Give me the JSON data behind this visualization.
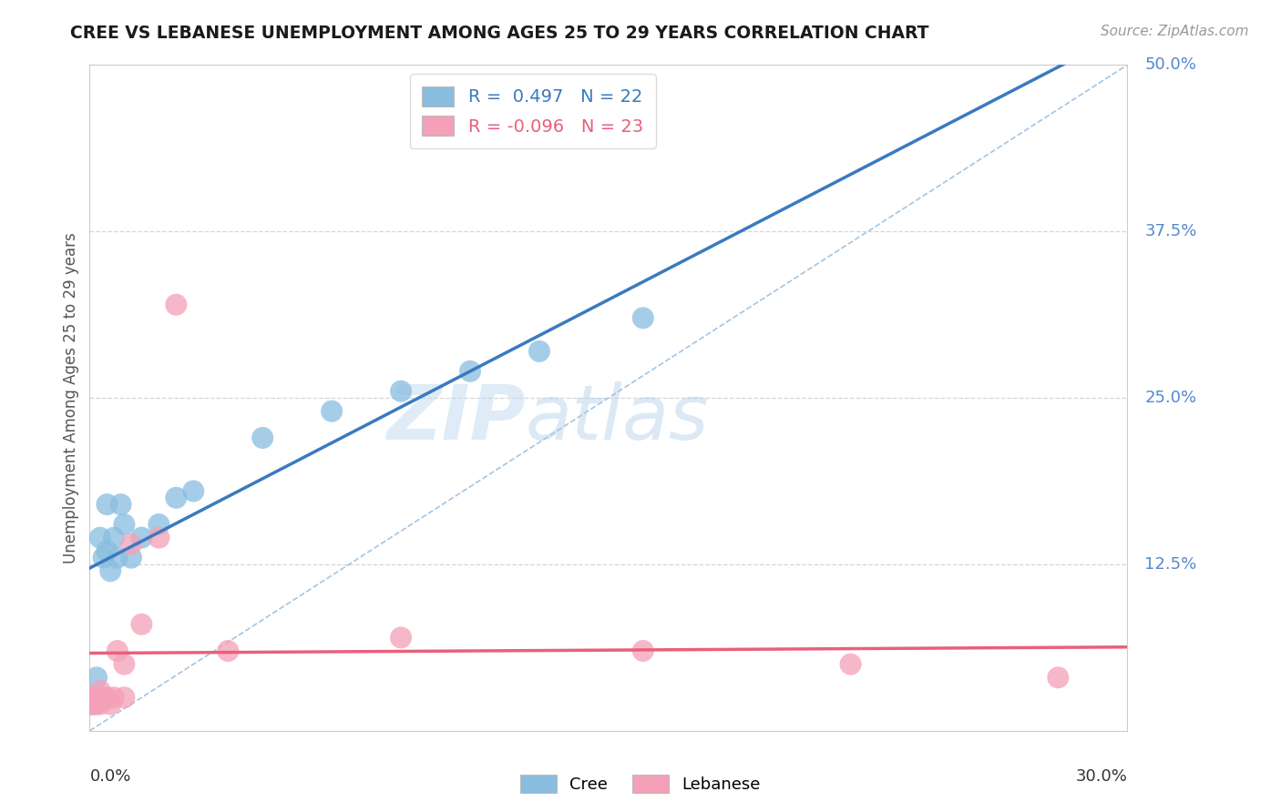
{
  "title": "CREE VS LEBANESE UNEMPLOYMENT AMONG AGES 25 TO 29 YEARS CORRELATION CHART",
  "source_text": "Source: ZipAtlas.com",
  "watermark_zip": "ZIP",
  "watermark_atlas": "atlas",
  "legend_cree_label": "R =  0.497   N = 22",
  "legend_leb_label": "R = -0.096   N = 23",
  "bottom_legend_cree": "Cree",
  "bottom_legend_leb": "Lebanese",
  "cree_color": "#89bde0",
  "lebanese_color": "#f4a0b8",
  "cree_line_color": "#3a7abf",
  "lebanese_line_color": "#e8607a",
  "diag_line_color": "#9abfdf",
  "hline_color": "#cccccc",
  "x_min": 0.0,
  "x_max": 0.3,
  "y_min": 0.0,
  "y_max": 0.5,
  "cree_x": [
    0.001,
    0.002,
    0.003,
    0.004,
    0.005,
    0.005,
    0.006,
    0.007,
    0.008,
    0.009,
    0.01,
    0.012,
    0.015,
    0.02,
    0.025,
    0.03,
    0.05,
    0.07,
    0.09,
    0.11,
    0.13,
    0.16
  ],
  "cree_y": [
    0.02,
    0.04,
    0.145,
    0.13,
    0.135,
    0.17,
    0.12,
    0.145,
    0.13,
    0.17,
    0.155,
    0.13,
    0.145,
    0.155,
    0.175,
    0.18,
    0.22,
    0.24,
    0.255,
    0.27,
    0.285,
    0.31
  ],
  "lebanese_x": [
    0.0,
    0.0,
    0.001,
    0.001,
    0.002,
    0.003,
    0.003,
    0.004,
    0.005,
    0.006,
    0.007,
    0.008,
    0.01,
    0.01,
    0.012,
    0.015,
    0.02,
    0.025,
    0.04,
    0.09,
    0.16,
    0.22,
    0.28
  ],
  "lebanese_y": [
    0.02,
    0.025,
    0.02,
    0.025,
    0.02,
    0.02,
    0.03,
    0.025,
    0.025,
    0.02,
    0.025,
    0.06,
    0.05,
    0.025,
    0.14,
    0.08,
    0.145,
    0.32,
    0.06,
    0.07,
    0.06,
    0.05,
    0.04
  ]
}
